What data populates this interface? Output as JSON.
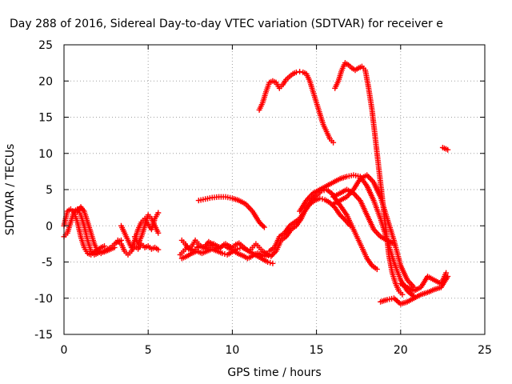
{
  "chart_data": {
    "type": "scatter",
    "title": "Day 288 of 2016, Sidereal Day-to-day VTEC variation (SDTVAR) for receiver e",
    "xlabel": "GPS time / hours",
    "ylabel": "SDTVAR / TECUs",
    "xlim": [
      0,
      25
    ],
    "ylim": [
      -15,
      25
    ],
    "xticks": [
      0,
      5,
      10,
      15,
      20,
      25
    ],
    "yticks": [
      -15,
      -10,
      -5,
      0,
      5,
      10,
      15,
      20,
      25
    ],
    "grid": true,
    "marker": "+",
    "color": "#ff0000",
    "series": [
      {
        "x": [
          0.0,
          0.2,
          0.4,
          0.6,
          0.8,
          1.0,
          1.2,
          1.4,
          1.6,
          1.8,
          2.0,
          2.2,
          2.4,
          2.6,
          2.8,
          3.0
        ],
        "y": [
          -1.5,
          -1.0,
          0.5,
          2.0,
          2.3,
          1.5,
          0.0,
          -2.0,
          -3.5,
          -4.0,
          -3.8,
          -3.5,
          -3.6,
          -3.4,
          -3.2,
          -3.0
        ]
      },
      {
        "x": [
          0.0,
          0.2,
          0.4,
          0.6,
          0.8,
          1.0,
          1.2,
          1.4,
          1.6,
          1.8,
          2.0,
          2.2,
          2.4
        ],
        "y": [
          0.0,
          2.0,
          2.3,
          1.8,
          0.5,
          -1.5,
          -3.0,
          -3.8,
          -4.0,
          -3.6,
          -3.3,
          -3.0,
          -2.8
        ]
      },
      {
        "x": [
          0.8,
          1.0,
          1.2,
          1.4,
          1.6,
          1.8,
          2.0,
          2.2,
          2.4,
          2.6,
          2.8,
          3.0,
          3.2,
          3.4
        ],
        "y": [
          2.0,
          2.6,
          2.0,
          0.5,
          -1.0,
          -2.5,
          -3.5,
          -3.8,
          -3.5,
          -3.2,
          -3.0,
          -2.5,
          -2.2,
          -2.0
        ]
      },
      {
        "x": [
          3.2,
          3.4,
          3.6,
          3.8,
          4.0,
          4.2,
          4.4,
          4.6,
          4.8,
          5.0,
          5.2,
          5.4,
          5.6
        ],
        "y": [
          -2.0,
          -2.5,
          -3.5,
          -4.0,
          -3.5,
          -2.8,
          -3.2,
          -2.5,
          -3.0,
          -2.8,
          -3.2,
          -3.0,
          -3.3
        ]
      },
      {
        "x": [
          3.4,
          3.6,
          3.8,
          4.0,
          4.2,
          4.4,
          4.6,
          4.8,
          5.0,
          5.2,
          5.4,
          5.6
        ],
        "y": [
          0.0,
          -1.0,
          -2.0,
          -3.0,
          -2.0,
          -0.5,
          0.5,
          1.0,
          0.2,
          -0.5,
          1.0,
          1.8
        ]
      },
      {
        "x": [
          4.2,
          4.4,
          4.6,
          4.8,
          5.0,
          5.2,
          5.4,
          5.6
        ],
        "y": [
          -1.5,
          -2.5,
          -1.5,
          0.0,
          1.5,
          1.0,
          0.0,
          -1.0
        ]
      },
      {
        "x": [
          6.9,
          7.1,
          7.3,
          7.5,
          7.7,
          7.9,
          8.1,
          8.3,
          8.5,
          8.7,
          8.9,
          9.1,
          9.3,
          9.5,
          9.7,
          9.9,
          10.1,
          10.3,
          10.5,
          10.7,
          10.9,
          11.1,
          11.3,
          11.5,
          11.7,
          11.9,
          12.1
        ],
        "y": [
          -4.0,
          -3.5,
          -3.0,
          -3.2,
          -3.5,
          -3.0,
          -2.8,
          -3.0,
          -3.2,
          -2.8,
          -2.5,
          -2.8,
          -3.0,
          -2.6,
          -3.0,
          -3.2,
          -3.5,
          -3.8,
          -4.0,
          -4.2,
          -4.5,
          -4.3,
          -4.0,
          -3.8,
          -4.0,
          -4.2,
          -4.0
        ]
      },
      {
        "x": [
          7.0,
          7.2,
          7.4,
          7.6,
          7.8,
          8.0,
          8.2,
          8.4,
          8.6,
          8.8,
          9.0,
          9.2,
          9.4,
          9.6,
          9.8,
          10.0,
          10.2,
          10.4,
          10.6,
          10.8,
          11.0,
          11.2,
          11.4,
          11.6,
          11.8,
          12.0,
          12.2
        ],
        "y": [
          -2.0,
          -2.5,
          -3.2,
          -2.8,
          -2.0,
          -2.5,
          -3.0,
          -2.8,
          -2.2,
          -2.5,
          -3.0,
          -3.2,
          -2.8,
          -2.5,
          -2.8,
          -3.0,
          -2.6,
          -2.4,
          -2.8,
          -3.2,
          -3.5,
          -3.0,
          -2.5,
          -3.0,
          -3.5,
          -3.8,
          -4.0
        ]
      },
      {
        "x": [
          7.0,
          7.3,
          7.6,
          7.9,
          8.2,
          8.5,
          8.8,
          9.1,
          9.4,
          9.7,
          10.0,
          10.3,
          10.6,
          10.9,
          11.2,
          11.5,
          11.8,
          12.1,
          12.4
        ],
        "y": [
          -4.5,
          -4.2,
          -3.8,
          -3.5,
          -3.8,
          -3.5,
          -3.2,
          -3.5,
          -3.8,
          -4.0,
          -3.6,
          -3.2,
          -3.0,
          -3.4,
          -3.8,
          -4.2,
          -4.6,
          -5.0,
          -5.2
        ]
      },
      {
        "x": [
          8.0,
          8.4,
          8.8,
          9.2,
          9.6,
          10.0,
          10.4,
          10.8,
          11.2,
          11.6,
          11.9
        ],
        "y": [
          3.5,
          3.7,
          3.9,
          4.0,
          4.0,
          3.8,
          3.5,
          3.0,
          2.0,
          0.5,
          -0.2
        ]
      },
      {
        "x": [
          11.6,
          11.8,
          12.0,
          12.2,
          12.4,
          12.6,
          12.8,
          13.0,
          13.2,
          13.4,
          13.6,
          13.8,
          14.0,
          14.2,
          14.4,
          14.6,
          14.8,
          15.0,
          15.2,
          15.4,
          15.6,
          15.8,
          16.0
        ],
        "y": [
          16.0,
          17.0,
          18.5,
          19.8,
          20.0,
          19.8,
          19.0,
          19.5,
          20.2,
          20.6,
          21.0,
          21.2,
          21.3,
          21.2,
          21.0,
          20.0,
          18.5,
          17.0,
          15.5,
          14.0,
          13.0,
          12.0,
          11.5
        ]
      },
      {
        "x": [
          12.0,
          12.3,
          12.6,
          12.9,
          13.2,
          13.5,
          13.8,
          14.1,
          14.4,
          14.7,
          15.0,
          15.3,
          15.6,
          15.9,
          16.2,
          16.5,
          16.8,
          17.1,
          17.4,
          17.7,
          18.0,
          18.3,
          18.6
        ],
        "y": [
          -4.0,
          -4.2,
          -3.5,
          -2.0,
          -1.5,
          -0.5,
          0.0,
          1.0,
          2.5,
          3.5,
          4.2,
          4.8,
          5.0,
          4.5,
          3.5,
          2.5,
          1.5,
          0.0,
          -1.5,
          -3.0,
          -4.5,
          -5.5,
          -6.0
        ]
      },
      {
        "x": [
          12.2,
          12.5,
          12.8,
          13.1,
          13.4,
          13.7,
          14.0,
          14.3,
          14.6,
          14.9,
          15.2,
          15.5,
          15.8,
          16.1,
          16.4,
          16.7,
          17.0
        ],
        "y": [
          -3.5,
          -3.0,
          -1.5,
          -1.0,
          0.0,
          0.5,
          1.0,
          2.0,
          3.0,
          3.5,
          3.8,
          3.6,
          3.2,
          2.5,
          1.5,
          0.8,
          0.0
        ]
      },
      {
        "x": [
          14.0,
          14.4,
          14.8,
          15.2,
          15.6,
          16.0,
          16.4,
          16.8,
          17.2,
          17.6,
          18.0,
          18.4,
          18.8,
          19.2,
          19.6,
          20.0,
          20.4,
          20.8
        ],
        "y": [
          2.0,
          3.5,
          4.5,
          5.0,
          5.5,
          6.0,
          6.5,
          6.8,
          7.0,
          6.8,
          5.5,
          3.5,
          1.0,
          -2.0,
          -5.0,
          -7.5,
          -9.0,
          -9.8
        ]
      },
      {
        "x": [
          16.0,
          16.4,
          16.8,
          17.2,
          17.6,
          18.0,
          18.4,
          18.8,
          19.2,
          19.6,
          20.0,
          20.4,
          20.8
        ],
        "y": [
          3.0,
          3.5,
          4.0,
          5.0,
          6.5,
          7.0,
          6.0,
          4.0,
          1.0,
          -2.0,
          -5.5,
          -7.5,
          -8.5
        ]
      },
      {
        "x": [
          16.0,
          16.4,
          16.8,
          17.2,
          17.6,
          18.0,
          18.4,
          18.8,
          19.2,
          19.6
        ],
        "y": [
          4.0,
          4.5,
          5.0,
          4.5,
          3.5,
          1.5,
          -0.5,
          -1.5,
          -2.0,
          -2.5
        ]
      },
      {
        "x": [
          16.1,
          16.3,
          16.5,
          16.7,
          16.9,
          17.1,
          17.3,
          17.5,
          17.7,
          17.9,
          18.1,
          18.3,
          18.5,
          18.7,
          18.9,
          19.1,
          19.3,
          19.5,
          19.7,
          19.9,
          20.1
        ],
        "y": [
          19.0,
          20.0,
          21.5,
          22.5,
          22.2,
          21.8,
          21.5,
          21.8,
          22.0,
          21.5,
          19.0,
          16.0,
          12.0,
          8.0,
          4.0,
          0.0,
          -4.0,
          -6.5,
          -8.0,
          -9.0,
          -9.5
        ]
      },
      {
        "x": [
          18.8,
          19.2,
          19.6,
          20.0,
          20.4,
          20.8,
          21.2,
          21.6,
          22.0,
          22.4,
          22.8
        ],
        "y": [
          -10.5,
          -10.2,
          -10.0,
          -10.8,
          -10.5,
          -10.0,
          -9.5,
          -9.2,
          -8.8,
          -8.5,
          -7.0
        ]
      },
      {
        "x": [
          20.0,
          20.4,
          20.8,
          21.2,
          21.6,
          22.0,
          22.4,
          22.7
        ],
        "y": [
          -8.0,
          -8.5,
          -9.0,
          -8.5,
          -7.0,
          -7.5,
          -8.0,
          -6.5
        ]
      },
      {
        "x": [
          22.5,
          22.6,
          22.7,
          22.8
        ],
        "y": [
          10.8,
          10.7,
          10.6,
          10.5
        ]
      }
    ]
  }
}
